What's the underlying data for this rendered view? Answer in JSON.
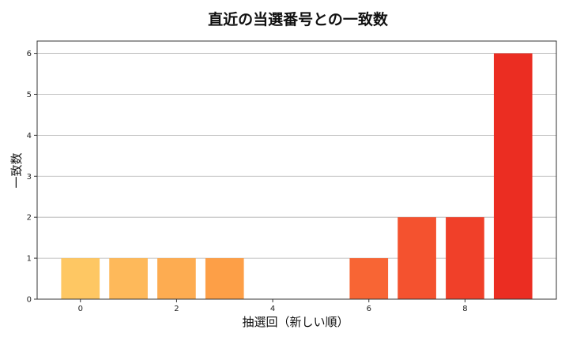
{
  "chart_data": {
    "type": "bar",
    "title": "直近の当選番号との一致数",
    "xlabel": "抽選回（新しい順）",
    "ylabel": "一致数",
    "x": [
      0,
      1,
      2,
      3,
      4,
      5,
      6,
      7,
      8,
      9
    ],
    "values": [
      1,
      1,
      1,
      1,
      0,
      0,
      1,
      2,
      2,
      6
    ],
    "xticks": [
      0,
      2,
      4,
      6,
      8
    ],
    "yticks": [
      0,
      1,
      2,
      3,
      4,
      5,
      6
    ],
    "xlim": [
      -0.9,
      9.9
    ],
    "ylim": [
      0,
      6.3
    ],
    "grid": "horizontal",
    "colors": [
      "#fec763",
      "#feb95a",
      "#fdac51",
      "#fd9f47",
      "#fc8e3f",
      "#fc7838",
      "#f86534",
      "#f4522f",
      "#f04029",
      "#eb2d22"
    ]
  }
}
